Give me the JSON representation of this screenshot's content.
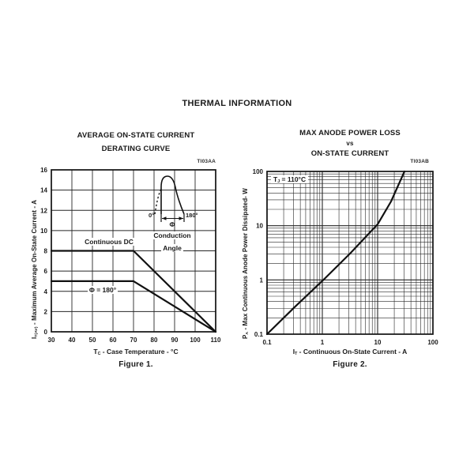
{
  "page": {
    "title": "THERMAL INFORMATION"
  },
  "figure1": {
    "title_line1": "AVERAGE ON-STATE CURRENT",
    "title_line2": "DERATING CURVE",
    "code": "TI03AA",
    "xlabel": {
      "base": "T",
      "sub": "C",
      "rest": " - Case Temperature - °C"
    },
    "ylabel": {
      "base": "I",
      "sub": "T(AV)",
      "rest": " - Maximum Average On-State Current - A"
    },
    "caption": "Figure 1.",
    "inset": {
      "deg0": "0°",
      "deg180": "180°",
      "phi": "Φ",
      "word1": "Conduction",
      "word2": "Angle"
    }
  },
  "figure2": {
    "title_line1": "MAX ANODE POWER LOSS",
    "title_vs": "vs",
    "title_line2": "ON-STATE CURRENT",
    "code": "TI03AB",
    "xlabel": {
      "base": "I",
      "sub": "T",
      "rest": " - Continuous On-State Current - A"
    },
    "ylabel": {
      "base": "P",
      "sub": "A",
      "rest": " - Max Continuous Anode Power Dissipated- W"
    },
    "caption": "Figure 2.",
    "annotation": {
      "base": "T",
      "sub": "J",
      "rest": " = 110°C"
    }
  },
  "chart_data": [
    {
      "id": "fig1",
      "type": "line",
      "title": "AVERAGE ON-STATE CURRENT DERATING CURVE",
      "xlabel": "TC - Case Temperature - °C",
      "ylabel": "IT(AV) - Maximum Average On-State Current - A",
      "xscale": "linear",
      "yscale": "linear",
      "xlim": [
        30,
        110
      ],
      "ylim": [
        0,
        16
      ],
      "xticks": [
        30,
        40,
        50,
        60,
        70,
        80,
        90,
        100,
        110
      ],
      "yticks": [
        0,
        2,
        4,
        6,
        8,
        10,
        12,
        14,
        16
      ],
      "grid": true,
      "series": [
        {
          "name": "Continuous DC",
          "points": [
            [
              30,
              8
            ],
            [
              70,
              8
            ],
            [
              110,
              0
            ]
          ]
        },
        {
          "name": "Φ = 180°",
          "points": [
            [
              30,
              5
            ],
            [
              70,
              5
            ],
            [
              110,
              0
            ]
          ]
        }
      ]
    },
    {
      "id": "fig2",
      "type": "line",
      "title": "MAX ANODE POWER LOSS vs ON-STATE CURRENT",
      "xlabel": "IT - Continuous On-State Current - A",
      "ylabel": "PA - Max Continuous Anode Power Dissipated- W",
      "xscale": "log",
      "yscale": "log",
      "xlim": [
        0.1,
        100
      ],
      "ylim": [
        0.1,
        100
      ],
      "xticks": [
        0.1,
        1,
        10,
        100
      ],
      "yticks": [
        0.1,
        1,
        10,
        100
      ],
      "grid": true,
      "condition": "TJ = 110°C",
      "series": [
        {
          "name": "TJ = 110°C",
          "points": [
            [
              0.1,
              0.1
            ],
            [
              0.32,
              0.32
            ],
            [
              1,
              0.96
            ],
            [
              3.2,
              3.1
            ],
            [
              10,
              10.6
            ],
            [
              17.5,
              28
            ],
            [
              30.6,
              100
            ]
          ]
        }
      ]
    }
  ]
}
